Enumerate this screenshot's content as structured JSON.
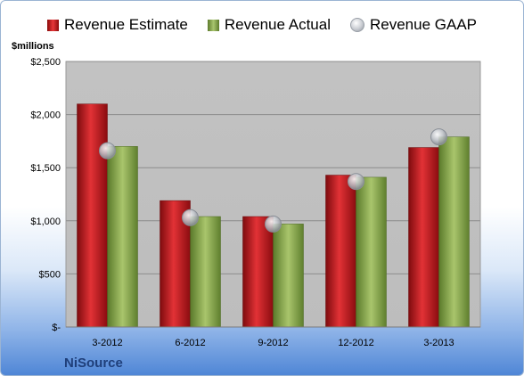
{
  "units_label": "$millions",
  "company": "NiSource",
  "legend": [
    {
      "label": "Revenue Estimate",
      "icon": "square-red"
    },
    {
      "label": "Revenue Actual",
      "icon": "square-green"
    },
    {
      "label": "Revenue GAAP",
      "icon": "circle-gray"
    }
  ],
  "colors": {
    "estimate": "#c8161c",
    "actual": "#8fae55",
    "gaap": "#c0c4ca",
    "plot_bg": "#c4c4c4"
  },
  "chart_data": {
    "type": "bar",
    "categories": [
      "3-2012",
      "6-2012",
      "9-2012",
      "12-2012",
      "3-2013"
    ],
    "series": [
      {
        "name": "Revenue Estimate",
        "values": [
          2100,
          1190,
          1040,
          1430,
          1690
        ]
      },
      {
        "name": "Revenue Actual",
        "values": [
          1700,
          1040,
          970,
          1410,
          1790
        ]
      },
      {
        "name": "Revenue GAAP",
        "values": [
          1660,
          1030,
          970,
          1370,
          1790
        ],
        "style": "marker"
      }
    ],
    "ylim": [
      0,
      2500
    ],
    "yticks": [
      0,
      500,
      1000,
      1500,
      2000,
      2500
    ],
    "ytick_labels": [
      "$-",
      "$500",
      "$1,000",
      "$1,500",
      "$2,000",
      "$2,500"
    ],
    "grid": true,
    "legend_position": "top"
  }
}
